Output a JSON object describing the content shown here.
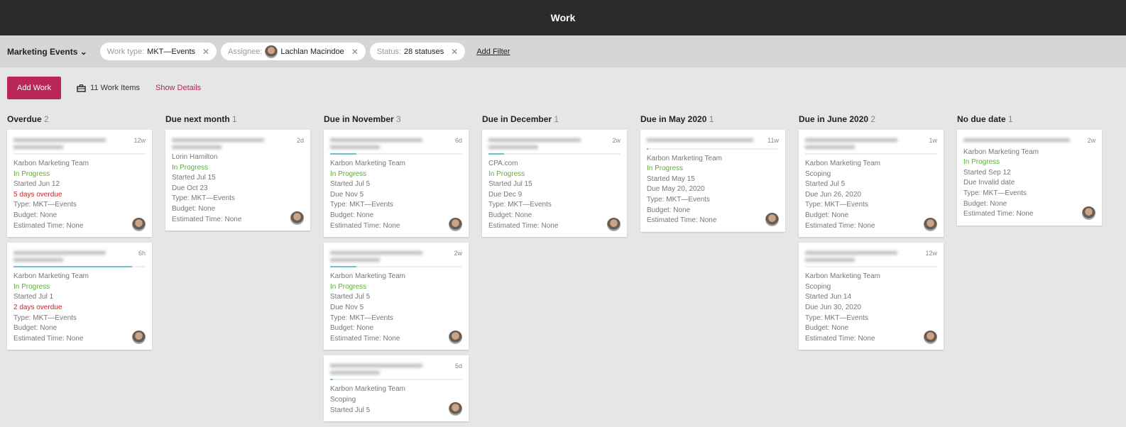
{
  "header": {
    "title": "Work"
  },
  "filters": {
    "view": "Marketing Events",
    "chips": [
      {
        "key": "Work type:",
        "value": "MKT—Events",
        "avatar": false
      },
      {
        "key": "Assignee:",
        "value": "Lachlan Macindoe",
        "avatar": true
      },
      {
        "key": "Status:",
        "value": "28 statuses",
        "avatar": false
      }
    ],
    "add_filter": "Add Filter"
  },
  "toolbar": {
    "add_work": "Add Work",
    "count": "11 Work Items",
    "show_details": "Show Details"
  },
  "colors": {
    "accent": "#b8265a",
    "in_progress": "#5cad3a",
    "overdue": "#d0212b"
  },
  "columns": [
    {
      "title": "Overdue",
      "count": "2",
      "cards": [
        {
          "age": "12w",
          "progress": 0,
          "lines": [
            [
              "Karbon Marketing Team",
              ""
            ],
            [
              "In Progress",
              "green"
            ],
            [
              "Started Jun 12",
              ""
            ],
            [
              "5 days overdue",
              "red"
            ],
            [
              "Type: MKT—Events",
              ""
            ],
            [
              "Budget: None",
              ""
            ],
            [
              "Estimated Time: None",
              ""
            ]
          ]
        },
        {
          "age": "6h",
          "progress": 90,
          "lines": [
            [
              "Karbon Marketing Team",
              ""
            ],
            [
              "In Progress",
              "green"
            ],
            [
              "Started Jul 1",
              ""
            ],
            [
              "2 days overdue",
              "red"
            ],
            [
              "Type: MKT—Events",
              ""
            ],
            [
              "Budget: None",
              ""
            ],
            [
              "Estimated Time: None",
              ""
            ]
          ]
        }
      ]
    },
    {
      "title": "Due next month",
      "count": "1",
      "cards": [
        {
          "age": "2d",
          "progress": null,
          "lines": [
            [
              "Lorin Hamilton",
              ""
            ],
            [
              "In Progress",
              "green"
            ],
            [
              "Started Jul 15",
              ""
            ],
            [
              "Due Oct 23",
              ""
            ],
            [
              "Type: MKT—Events",
              ""
            ],
            [
              "Budget: None",
              ""
            ],
            [
              "Estimated Time: None",
              ""
            ]
          ]
        }
      ]
    },
    {
      "title": "Due in November",
      "count": "3",
      "cards": [
        {
          "age": "6d",
          "progress": 20,
          "lines": [
            [
              "Karbon Marketing Team",
              ""
            ],
            [
              "In Progress",
              "green"
            ],
            [
              "Started Jul 5",
              ""
            ],
            [
              "Due Nov 5",
              ""
            ],
            [
              "Type: MKT—Events",
              ""
            ],
            [
              "Budget: None",
              ""
            ],
            [
              "Estimated Time: None",
              ""
            ]
          ]
        },
        {
          "age": "2w",
          "progress": 20,
          "lines": [
            [
              "Karbon Marketing Team",
              ""
            ],
            [
              "In Progress",
              "green"
            ],
            [
              "Started Jul 5",
              ""
            ],
            [
              "Due Nov 5",
              ""
            ],
            [
              "Type: MKT—Events",
              ""
            ],
            [
              "Budget: None",
              ""
            ],
            [
              "Estimated Time: None",
              ""
            ]
          ]
        },
        {
          "age": "5d",
          "progress": 2,
          "lines": [
            [
              "Karbon Marketing Team",
              ""
            ],
            [
              "Scoping",
              ""
            ],
            [
              "Started Jul 5",
              ""
            ]
          ]
        }
      ]
    },
    {
      "title": "Due in December",
      "count": "1",
      "cards": [
        {
          "age": "2w",
          "progress": 12,
          "lines": [
            [
              "CPA.com",
              ""
            ],
            [
              "In Progress",
              "green"
            ],
            [
              "Started Jul 15",
              ""
            ],
            [
              "Due Dec 9",
              ""
            ],
            [
              "Type: MKT—Events",
              ""
            ],
            [
              "Budget: None",
              ""
            ],
            [
              "Estimated Time: None",
              ""
            ]
          ]
        }
      ]
    },
    {
      "title": "Due in May 2020",
      "count": "1",
      "cards": [
        {
          "age": "11w",
          "progress": 1,
          "one": true,
          "lines": [
            [
              "Karbon Marketing Team",
              ""
            ],
            [
              "In Progress",
              "green"
            ],
            [
              "Started May 15",
              ""
            ],
            [
              "Due May 20, 2020",
              ""
            ],
            [
              "Type: MKT—Events",
              ""
            ],
            [
              "Budget: None",
              ""
            ],
            [
              "Estimated Time: None",
              ""
            ]
          ]
        }
      ]
    },
    {
      "title": "Due in June 2020",
      "count": "2",
      "cards": [
        {
          "age": "1w",
          "progress": 0,
          "lines": [
            [
              "Karbon Marketing Team",
              ""
            ],
            [
              "Scoping",
              ""
            ],
            [
              "Started Jul 5",
              ""
            ],
            [
              "Due Jun 26, 2020",
              ""
            ],
            [
              "Type: MKT—Events",
              ""
            ],
            [
              "Budget: None",
              ""
            ],
            [
              "Estimated Time: None",
              ""
            ]
          ]
        },
        {
          "age": "12w",
          "progress": 0,
          "lines": [
            [
              "Karbon Marketing Team",
              ""
            ],
            [
              "Scoping",
              ""
            ],
            [
              "Started Jun 14",
              ""
            ],
            [
              "Due Jun 30, 2020",
              ""
            ],
            [
              "Type: MKT—Events",
              ""
            ],
            [
              "Budget: None",
              ""
            ],
            [
              "Estimated Time: None",
              ""
            ]
          ]
        }
      ]
    },
    {
      "title": "No due date",
      "count": "1",
      "cards": [
        {
          "age": "2w",
          "progress": null,
          "one": true,
          "lines": [
            [
              "Karbon Marketing Team",
              ""
            ],
            [
              "In Progress",
              "green"
            ],
            [
              "Started Sep 12",
              ""
            ],
            [
              "Due Invalid date",
              ""
            ],
            [
              "Type: MKT—Events",
              ""
            ],
            [
              "Budget: None",
              ""
            ],
            [
              "Estimated Time: None",
              ""
            ]
          ]
        }
      ]
    }
  ]
}
